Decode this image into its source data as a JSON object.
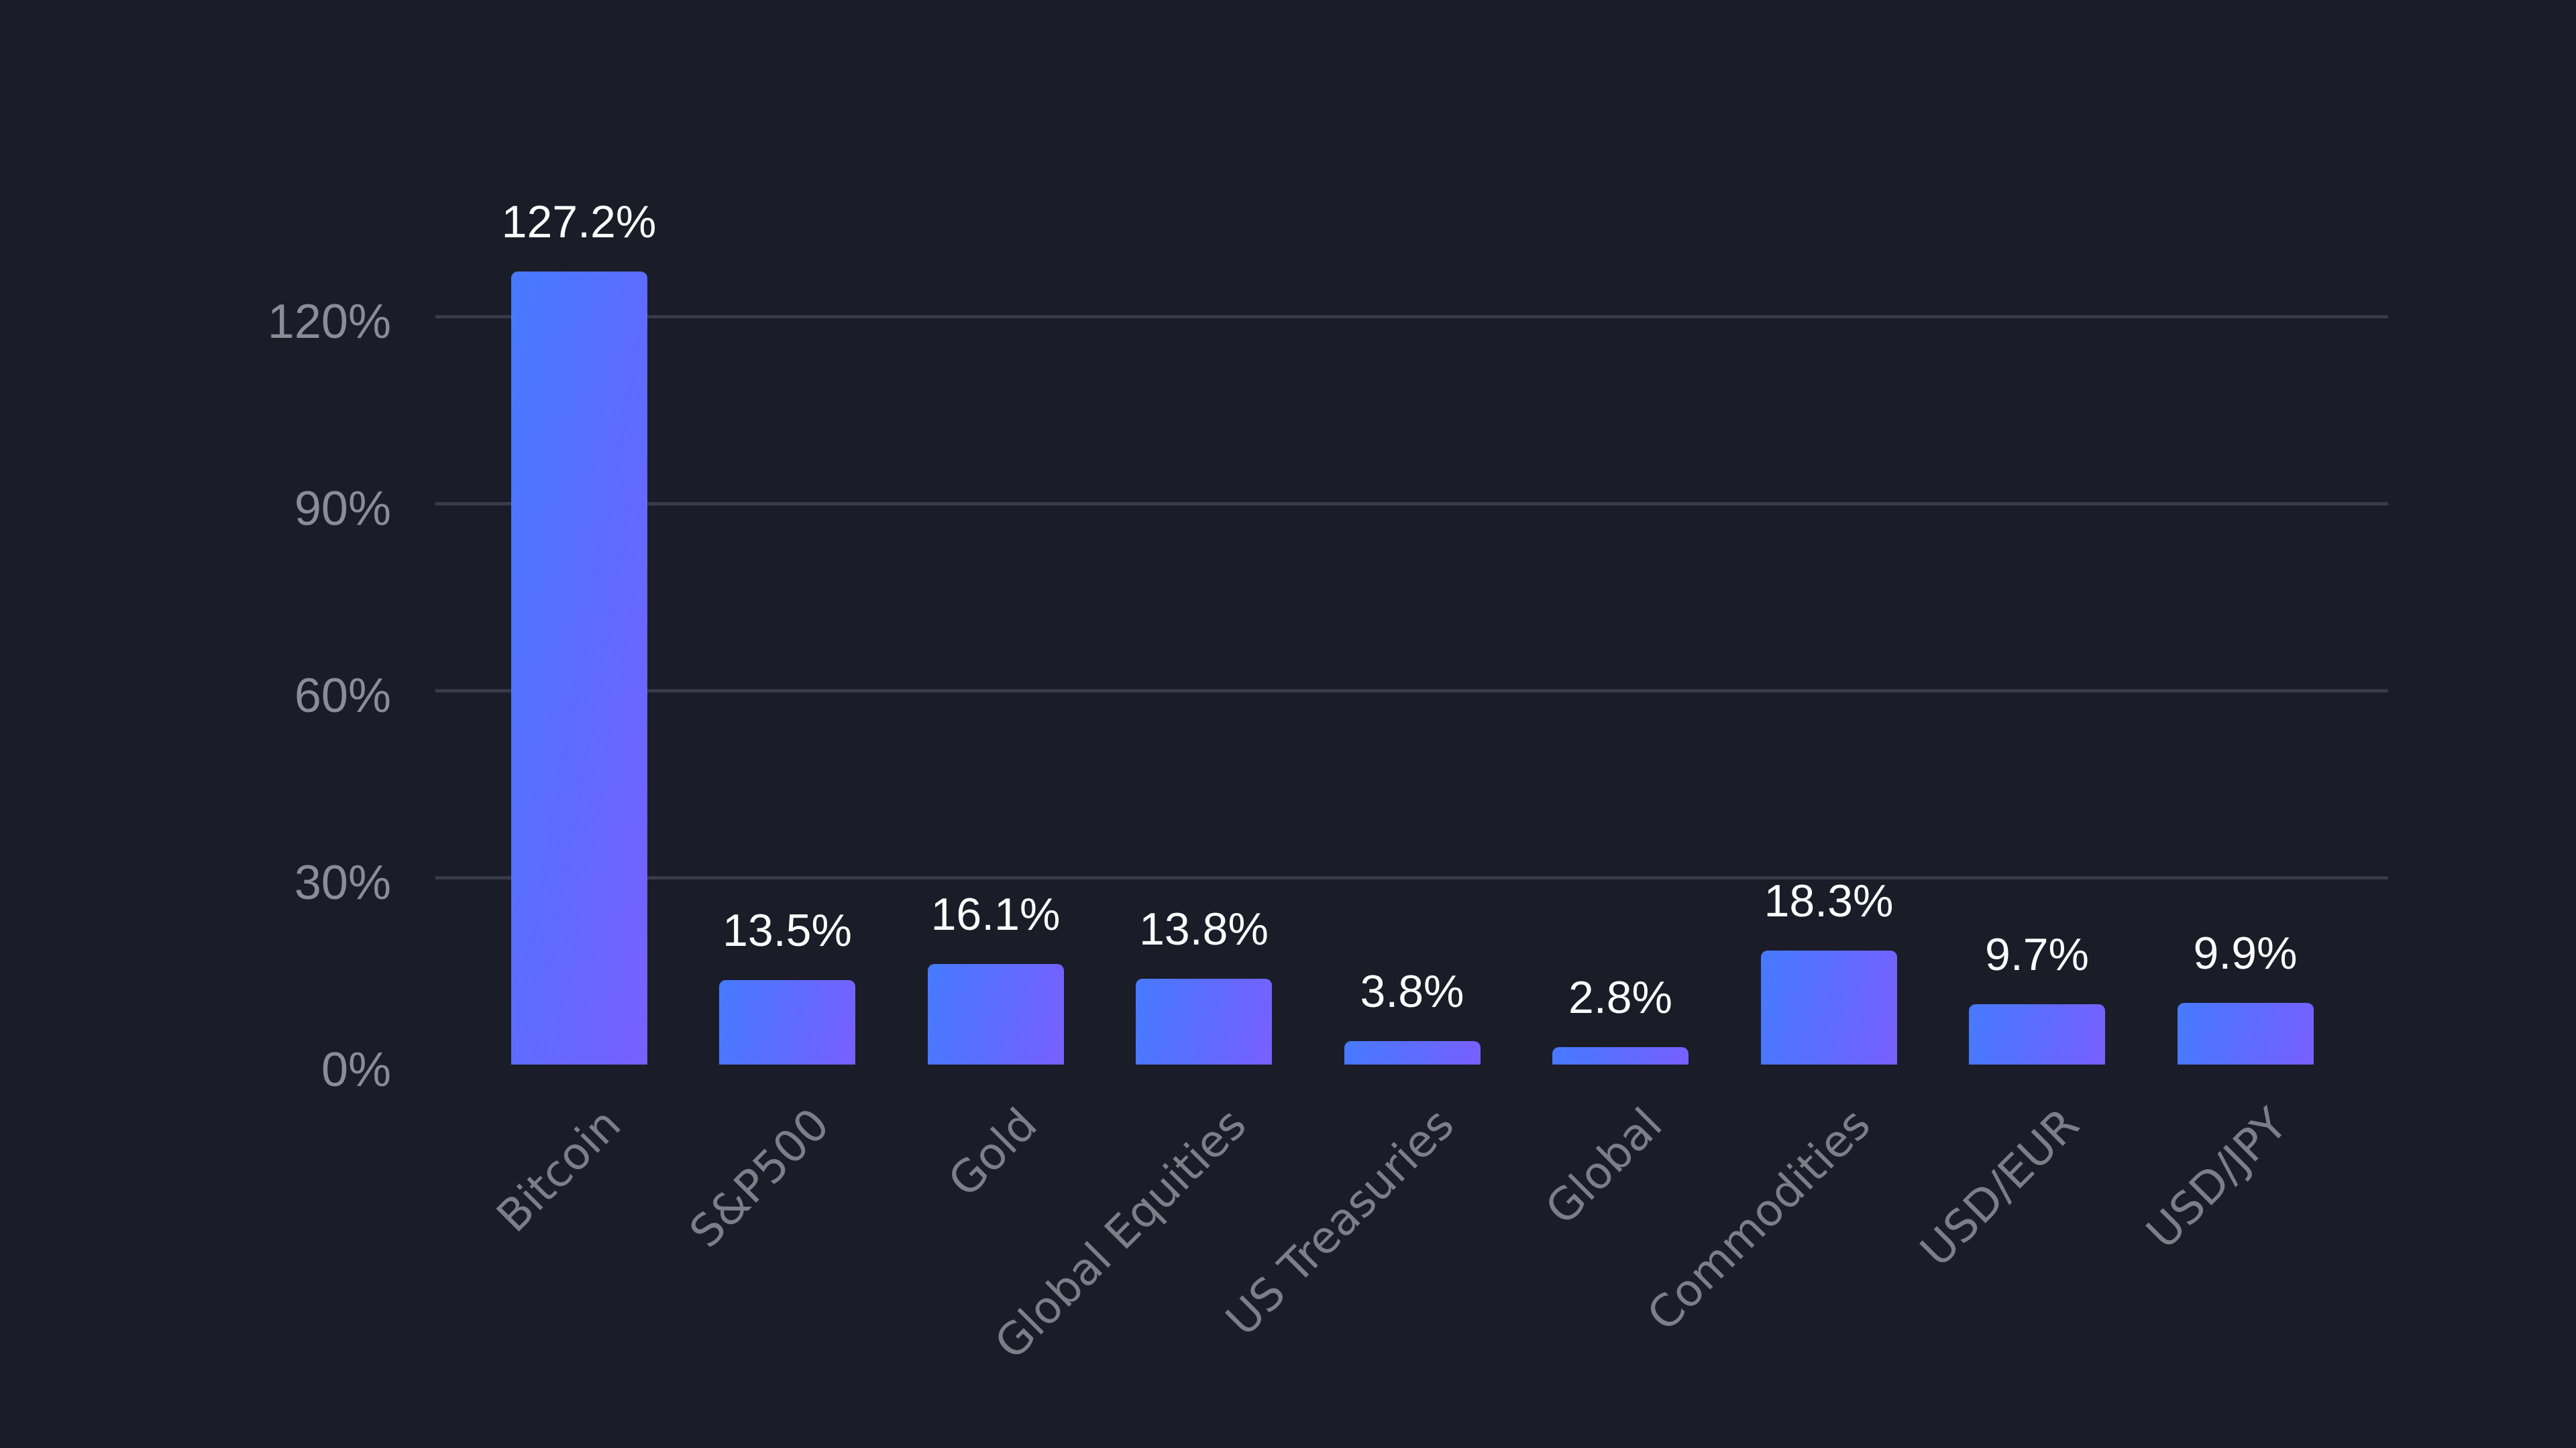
{
  "colors": {
    "background": "#1a1c28",
    "gridline": "#3a3a48",
    "bar_gradient_start": "#467aff",
    "bar_gradient_end": "#7860ff",
    "value_label": "#ffffff",
    "axis_label": "#8a8c96"
  },
  "chart_data": {
    "type": "bar",
    "title": "",
    "xlabel": "",
    "ylabel": "",
    "categories": [
      "Bitcoin",
      "S&P500",
      "Gold",
      "Global Equities",
      "US Treasuries",
      "Global",
      "Commodities",
      "USD/EUR",
      "USD/JPY"
    ],
    "values": [
      127.2,
      13.5,
      16.1,
      13.8,
      3.8,
      2.8,
      18.3,
      9.7,
      9.9
    ],
    "value_labels": [
      "127.2%",
      "13.5%",
      "16.1%",
      "13.8%",
      "3.8%",
      "2.8%",
      "18.3%",
      "9.7%",
      "9.9%"
    ],
    "yticks": [
      0,
      30,
      60,
      90,
      120
    ],
    "ytick_labels": [
      "0%",
      "30%",
      "60%",
      "90%",
      "120%"
    ],
    "ylim": [
      0,
      130
    ],
    "grid": true,
    "legend": null,
    "x_label_rotation": -45
  }
}
